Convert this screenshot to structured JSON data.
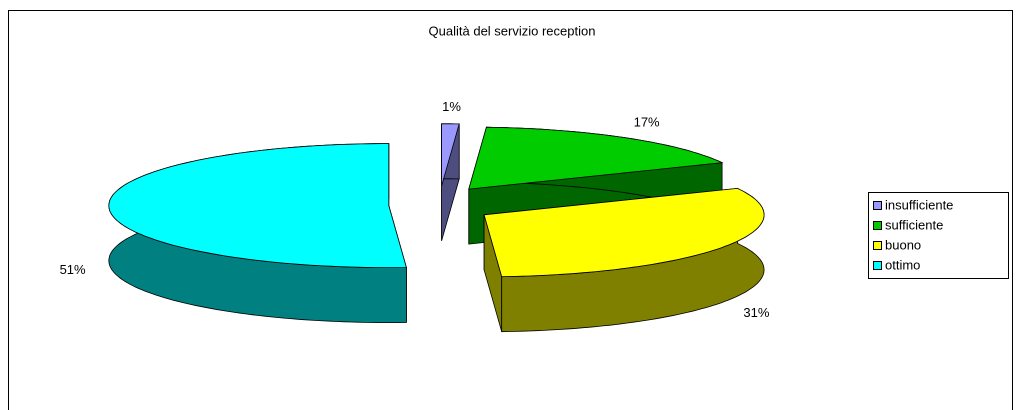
{
  "chart_data": {
    "type": "pie",
    "title": "Qualità del servizio reception",
    "categories": [
      "insufficiente",
      "sufficiente",
      "buono",
      "ottimo"
    ],
    "values": [
      1,
      17,
      31,
      51
    ],
    "value_labels": [
      "1%",
      "17%",
      "31%",
      "51%"
    ],
    "colors": [
      "#9999ff",
      "#00cc00",
      "#ffff00",
      "#00ffff"
    ],
    "legend": "right"
  }
}
